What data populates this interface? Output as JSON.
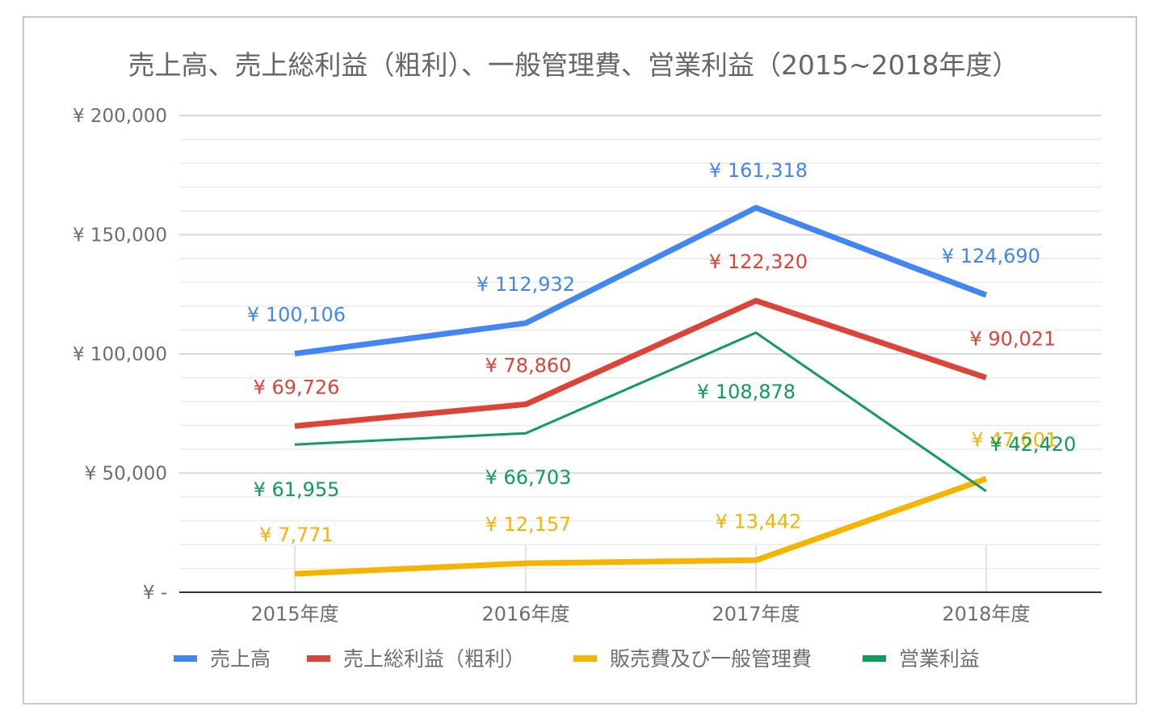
{
  "chart_data": {
    "type": "line",
    "title": "売上高、売上総利益（粗利）、一般管理費、営業利益（2015~2018年度）",
    "xlabel": "",
    "ylabel": "",
    "categories": [
      "2015年度",
      "2016年度",
      "2017年度",
      "2018年度"
    ],
    "ylim": [
      0,
      200000
    ],
    "y_ticks": [
      0,
      50000,
      100000,
      150000,
      200000
    ],
    "y_tick_labels": [
      "¥ -",
      "¥ 50,000",
      "¥ 100,000",
      "¥ 150,000",
      "¥ 200,000"
    ],
    "minor_gridlines": true,
    "legend_position": "bottom",
    "series": [
      {
        "name": "売上高",
        "color": "#4285f4",
        "line_weight": "thick",
        "values": [
          100106,
          112932,
          161318,
          124690
        ],
        "labels": [
          "¥ 100,106",
          "¥ 112,932",
          "¥ 161,318",
          "¥ 124,690"
        ]
      },
      {
        "name": "売上総利益（粗利）",
        "color": "#db4437",
        "line_weight": "thick",
        "values": [
          69726,
          78860,
          122320,
          90021
        ],
        "labels": [
          "¥ 69,726",
          "¥ 78,860",
          "¥ 122,320",
          "¥ 90,021"
        ]
      },
      {
        "name": "販売費及び一般管理費",
        "color": "#f4b400",
        "line_weight": "thick",
        "values": [
          7771,
          12157,
          13442,
          47601
        ],
        "labels": [
          "¥ 7,771",
          "¥ 12,157",
          "¥ 13,442",
          "¥ 47,601"
        ]
      },
      {
        "name": "営業利益",
        "color": "#0f9d58",
        "line_weight": "thin",
        "values": [
          61955,
          66703,
          108878,
          42420
        ],
        "labels": [
          "¥ 61,955",
          "¥ 66,703",
          "¥ 108,878",
          "¥ 42,420"
        ]
      }
    ]
  }
}
